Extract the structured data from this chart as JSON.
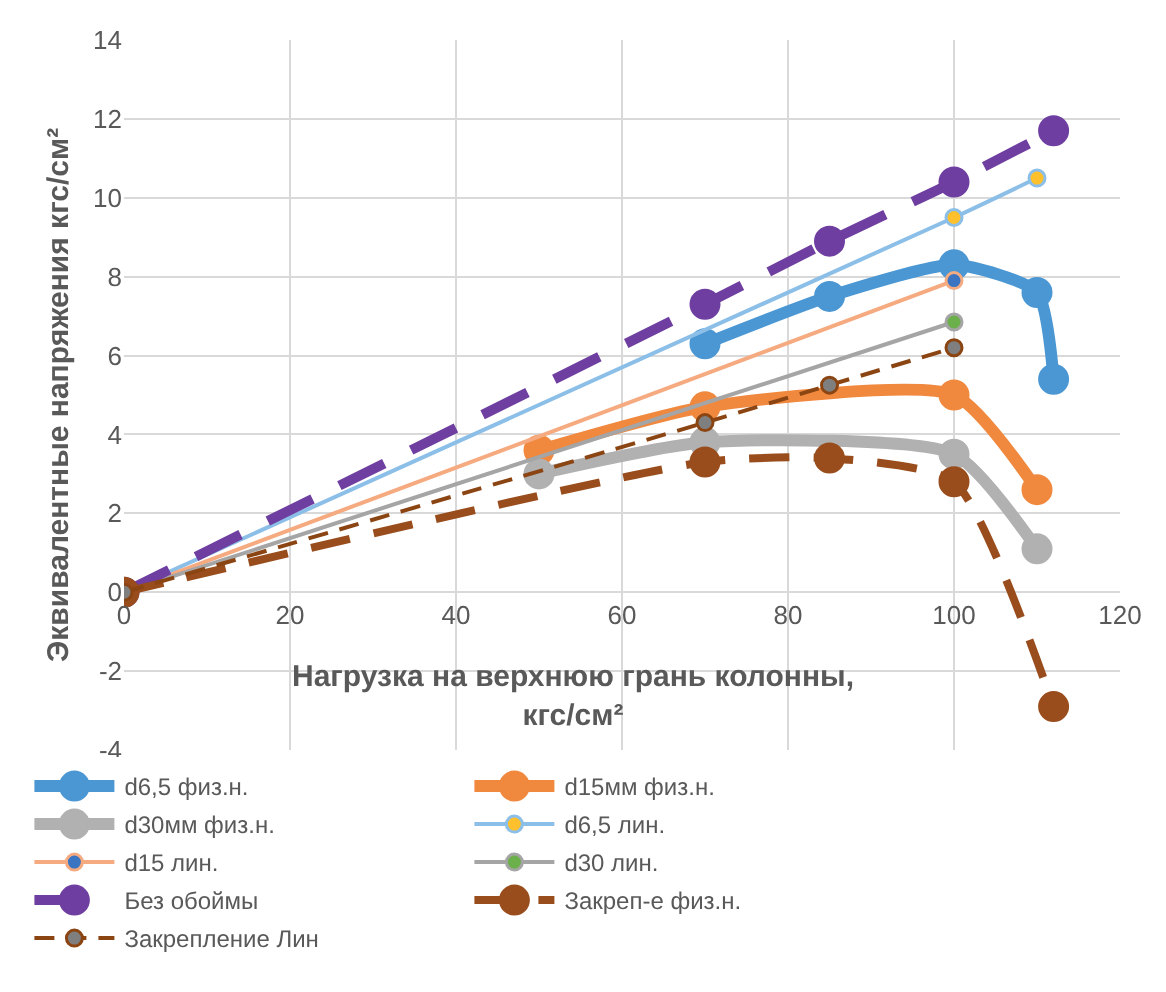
{
  "chart_data": {
    "type": "line",
    "xlabel": "Нагрузка на верхнюю грань колонны, кгс/см²",
    "ylabel": "Эквивалентные напряжения кгс/см²",
    "xlim": [
      0,
      120
    ],
    "xticks": [
      0,
      20,
      40,
      60,
      80,
      100,
      120
    ],
    "ylim": [
      -4,
      14
    ],
    "yticks": [
      -4,
      -2,
      0,
      2,
      4,
      6,
      8,
      10,
      12,
      14
    ],
    "grid": true,
    "legend": "bottom",
    "marker": "circle",
    "series": [
      {
        "name": "d6,5 физ.н.",
        "color": "#4b97d3",
        "x": [
          70,
          85,
          100,
          110,
          112
        ],
        "values": [
          6.3,
          7.5,
          8.3,
          7.6,
          5.4
        ],
        "line_style": "solid"
      },
      {
        "name": "d15мм физ.н.",
        "color": "#f0883e",
        "x": [
          50,
          70,
          100,
          110
        ],
        "values": [
          3.6,
          4.7,
          5.0,
          2.6
        ],
        "line_style": "solid"
      },
      {
        "name": "d30мм физ.н.",
        "color": "#b1b1b1",
        "x": [
          50,
          70,
          100,
          110
        ],
        "values": [
          3.0,
          3.8,
          3.5,
          1.1
        ],
        "line_style": "solid"
      },
      {
        "name": "d6,5 лин.",
        "color": "#8cbfe8",
        "colors": [
          "#ffc02e",
          "#ffc02e",
          "#ffc02e"
        ],
        "x": [
          0,
          100,
          110
        ],
        "values": [
          0,
          9.5,
          10.5
        ],
        "line_style": "solid"
      },
      {
        "name": "d15 лин.",
        "color": "#f5aa80",
        "colors": [
          "#3b75c2",
          "#3b75c2"
        ],
        "x": [
          0,
          100
        ],
        "values": [
          0,
          7.9
        ],
        "line_style": "solid"
      },
      {
        "name": "d30 лин.",
        "color": "#a5a5a5",
        "colors": [
          "#6bb04a",
          "#6bb04a"
        ],
        "x": [
          0,
          100
        ],
        "values": [
          0,
          6.85
        ],
        "line_style": "solid"
      },
      {
        "name": "Без обоймы",
        "color": "#6e3ea0",
        "x": [
          0,
          70,
          85,
          100,
          112
        ],
        "values": [
          0,
          7.3,
          8.9,
          10.4,
          11.7
        ],
        "line_style": "dashed"
      },
      {
        "name": "Закреп-е физ.н.",
        "color": "#9a4d1c",
        "x": [
          0,
          70,
          85,
          100,
          112
        ],
        "values": [
          0,
          3.3,
          3.4,
          2.8,
          -2.9
        ],
        "line_style": "dashed"
      },
      {
        "name": "Закрепление Лин",
        "color": "#8b4513",
        "colors": [
          "#7f7f7f",
          "#7f7f7f",
          "#7f7f7f",
          "#7f7f7f"
        ],
        "x": [
          0,
          70,
          85,
          100
        ],
        "values": [
          0,
          4.3,
          5.25,
          6.2
        ],
        "line_style": "dashed"
      }
    ]
  }
}
